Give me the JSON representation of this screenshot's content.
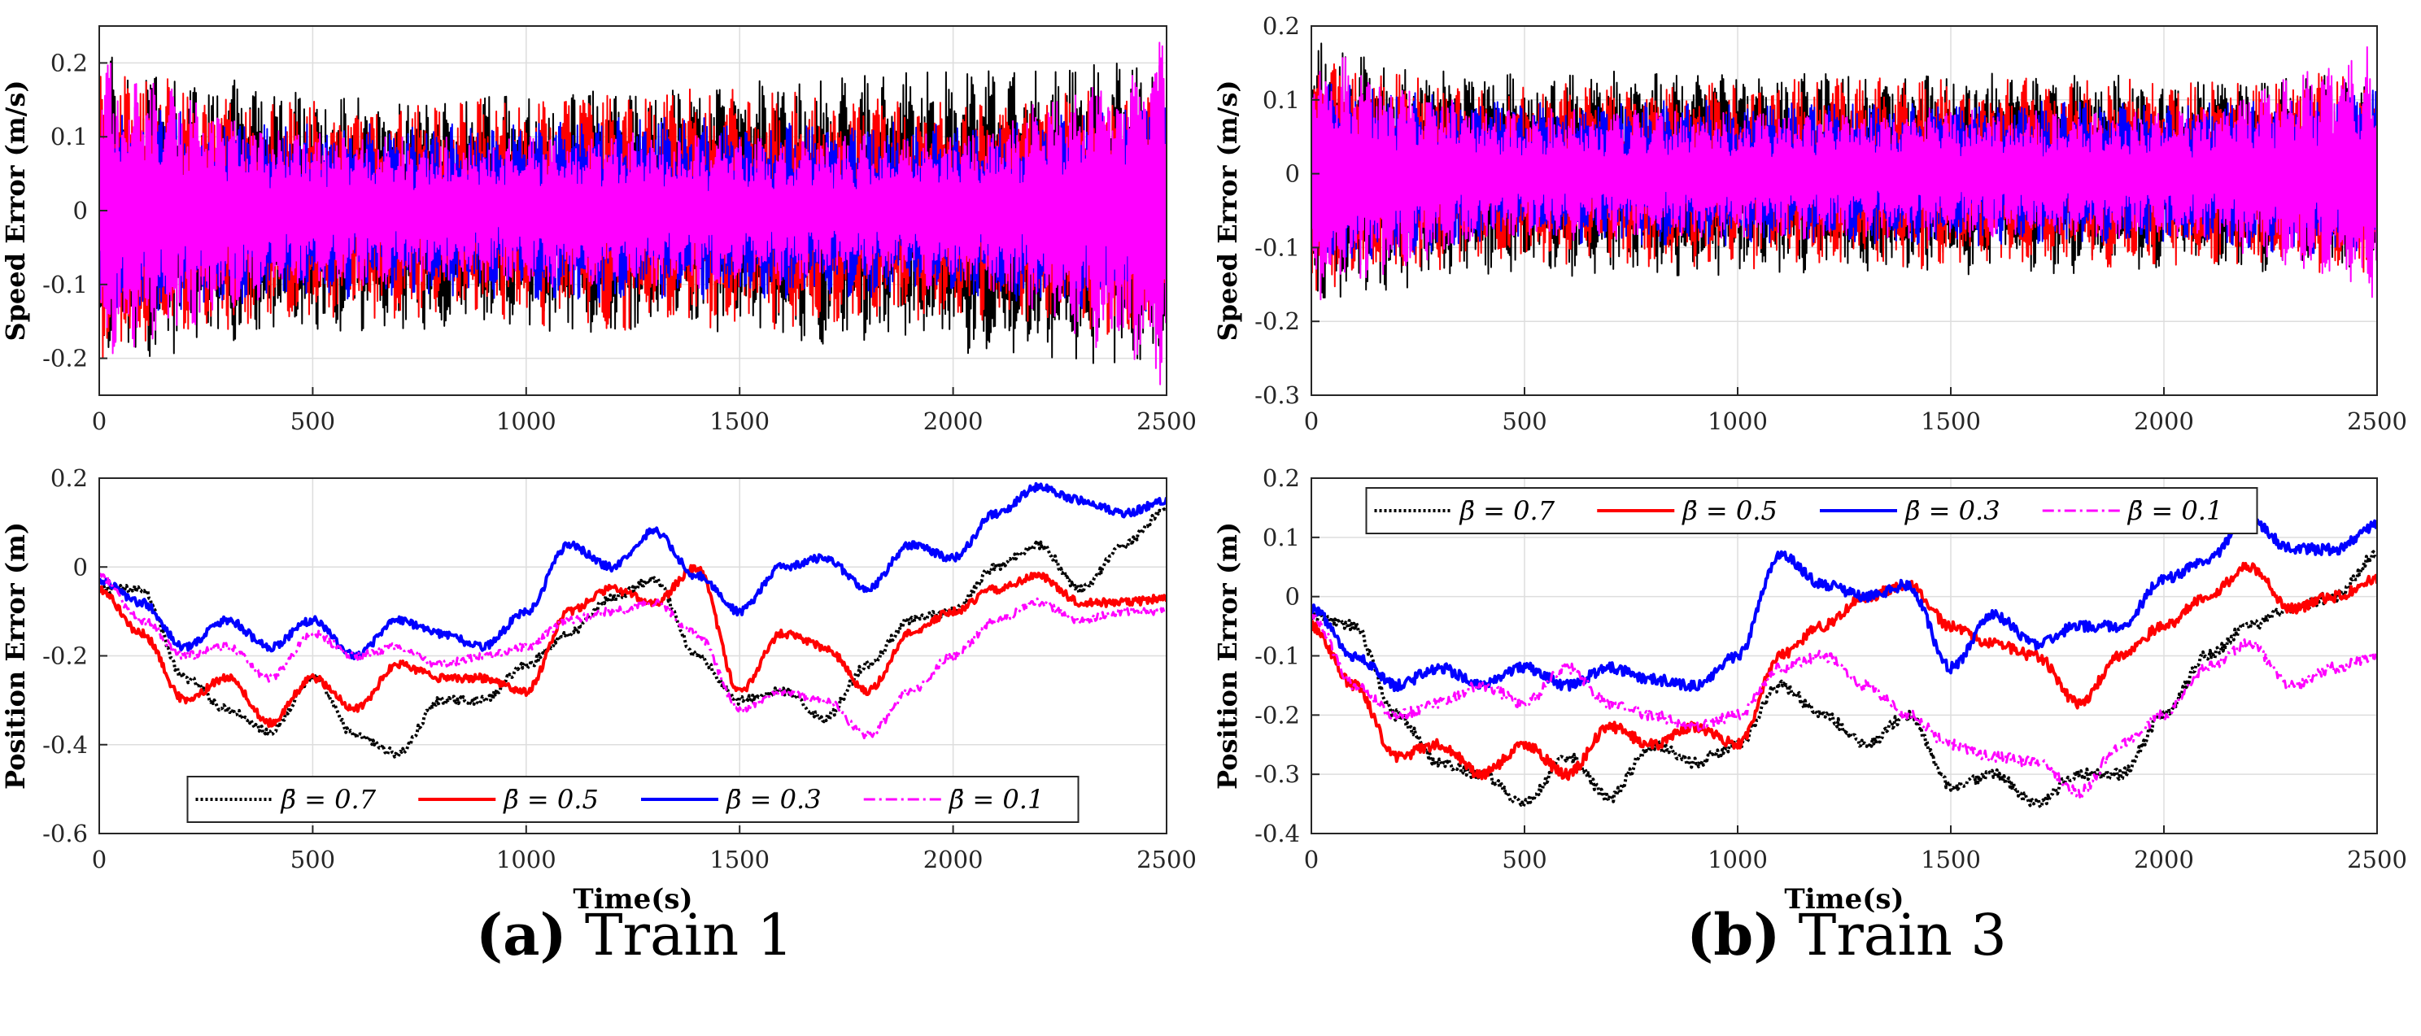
{
  "panels": [
    {
      "letter": "(a)",
      "label": "Train 1"
    },
    {
      "letter": "(b)",
      "label": "Train 3"
    }
  ],
  "legend_labels": [
    "β̄ = 0.7",
    "β̄ = 0.5",
    "β̄ = 0.3",
    "β̄ = 0.1"
  ],
  "colors": {
    "beta_0.7": "#000000",
    "beta_0.5": "#ff0000",
    "beta_0.3": "#0000ff",
    "beta_0.1": "#ff00ff"
  },
  "chart_data": [
    {
      "id": "train1-speed",
      "type": "line",
      "panel": "a",
      "ylabel": "Speed Error (m/s)",
      "xlabel": "",
      "xlim": [
        0,
        2500
      ],
      "ylim": [
        -0.25,
        0.25
      ],
      "xticks": [
        0,
        500,
        1000,
        1500,
        2000,
        2500
      ],
      "yticks": [
        -0.2,
        -0.1,
        0,
        0.1,
        0.2
      ],
      "grid": true,
      "legend": "none",
      "series": [
        {
          "name": "β̄ = 0.7",
          "style": "dotted",
          "amplitude": [
            0.22,
            0.17,
            0.16,
            0.17,
            0.18,
            0.2,
            0.22
          ]
        },
        {
          "name": "β̄ = 0.5",
          "style": "solid",
          "amplitude": [
            0.2,
            0.15,
            0.15,
            0.17,
            0.16,
            0.15,
            0.18
          ]
        },
        {
          "name": "β̄ = 0.3",
          "style": "solid",
          "amplitude": [
            0.15,
            0.12,
            0.12,
            0.13,
            0.12,
            0.12,
            0.15
          ]
        },
        {
          "name": "β̄ = 0.1",
          "style": "dashdot",
          "amplitude": [
            0.22,
            0.11,
            0.1,
            0.11,
            0.1,
            0.11,
            0.25
          ]
        }
      ]
    },
    {
      "id": "train1-position",
      "type": "line",
      "panel": "a",
      "ylabel": "Position Error (m)",
      "xlabel": "Time(s)",
      "xlim": [
        0,
        2500
      ],
      "ylim": [
        -0.6,
        0.2
      ],
      "xticks": [
        0,
        500,
        1000,
        1500,
        2000,
        2500
      ],
      "yticks": [
        -0.6,
        -0.4,
        -0.2,
        0,
        0.2
      ],
      "grid": true,
      "legend": "lower-center",
      "x": [
        0,
        100,
        200,
        300,
        400,
        500,
        600,
        700,
        800,
        900,
        1000,
        1100,
        1200,
        1300,
        1400,
        1500,
        1600,
        1700,
        1800,
        1900,
        2000,
        2100,
        2200,
        2300,
        2400,
        2500
      ],
      "series": [
        {
          "name": "β̄ = 0.7",
          "style": "dotted",
          "values": [
            -0.05,
            -0.05,
            -0.25,
            -0.32,
            -0.37,
            -0.25,
            -0.38,
            -0.42,
            -0.3,
            -0.3,
            -0.22,
            -0.15,
            -0.07,
            -0.03,
            -0.2,
            -0.3,
            -0.28,
            -0.34,
            -0.22,
            -0.12,
            -0.1,
            0.0,
            0.05,
            -0.05,
            0.05,
            0.13
          ]
        },
        {
          "name": "β̄ = 0.5",
          "style": "solid",
          "values": [
            -0.05,
            -0.15,
            -0.3,
            -0.25,
            -0.35,
            -0.25,
            -0.32,
            -0.22,
            -0.25,
            -0.25,
            -0.28,
            -0.1,
            -0.05,
            -0.08,
            0.0,
            -0.28,
            -0.15,
            -0.18,
            -0.28,
            -0.15,
            -0.1,
            -0.05,
            -0.02,
            -0.08,
            -0.08,
            -0.07
          ]
        },
        {
          "name": "β̄ = 0.3",
          "style": "solid",
          "values": [
            -0.03,
            -0.08,
            -0.18,
            -0.12,
            -0.18,
            -0.12,
            -0.2,
            -0.12,
            -0.15,
            -0.18,
            -0.1,
            0.05,
            0.0,
            0.08,
            -0.02,
            -0.1,
            0.0,
            0.02,
            -0.05,
            0.05,
            0.02,
            0.12,
            0.18,
            0.15,
            0.12,
            0.15
          ]
        },
        {
          "name": "β̄ = 0.1",
          "style": "dashdot",
          "values": [
            -0.02,
            -0.12,
            -0.2,
            -0.18,
            -0.25,
            -0.15,
            -0.2,
            -0.18,
            -0.22,
            -0.2,
            -0.18,
            -0.12,
            -0.1,
            -0.08,
            -0.15,
            -0.32,
            -0.28,
            -0.3,
            -0.38,
            -0.28,
            -0.2,
            -0.12,
            -0.08,
            -0.12,
            -0.1,
            -0.1
          ]
        }
      ]
    },
    {
      "id": "train3-speed",
      "type": "line",
      "panel": "b",
      "ylabel": "Speed Error (m/s)",
      "xlabel": "",
      "xlim": [
        0,
        2500
      ],
      "ylim": [
        -0.3,
        0.2
      ],
      "xticks": [
        0,
        500,
        1000,
        1500,
        2000,
        2500
      ],
      "yticks": [
        -0.3,
        -0.2,
        -0.1,
        0,
        0.1,
        0.2
      ],
      "grid": true,
      "legend": "none",
      "series": [
        {
          "name": "β̄ = 0.7",
          "style": "dotted",
          "amplitude": [
            0.18,
            0.14,
            0.14,
            0.14,
            0.14,
            0.13,
            0.14
          ]
        },
        {
          "name": "β̄ = 0.5",
          "style": "solid",
          "amplitude": [
            0.16,
            0.12,
            0.13,
            0.13,
            0.13,
            0.13,
            0.14
          ]
        },
        {
          "name": "β̄ = 0.3",
          "style": "solid",
          "amplitude": [
            0.13,
            0.1,
            0.1,
            0.1,
            0.1,
            0.1,
            0.12
          ]
        },
        {
          "name": "β̄ = 0.1",
          "style": "dashdot",
          "amplitude": [
            0.18,
            0.09,
            0.09,
            0.09,
            0.09,
            0.09,
            0.18
          ]
        }
      ]
    },
    {
      "id": "train3-position",
      "type": "line",
      "panel": "b",
      "ylabel": "Position Error (m)",
      "xlabel": "Time(s)",
      "xlim": [
        0,
        2500
      ],
      "ylim": [
        -0.4,
        0.2
      ],
      "xticks": [
        0,
        500,
        1000,
        1500,
        2000,
        2500
      ],
      "yticks": [
        -0.4,
        -0.3,
        -0.2,
        -0.1,
        0,
        0.1,
        0.2
      ],
      "grid": true,
      "legend": "top-center",
      "x": [
        0,
        100,
        200,
        300,
        400,
        500,
        600,
        700,
        800,
        900,
        1000,
        1100,
        1200,
        1300,
        1400,
        1500,
        1600,
        1700,
        1800,
        1900,
        2000,
        2100,
        2200,
        2300,
        2400,
        2500
      ],
      "series": [
        {
          "name": "β̄ = 0.7",
          "style": "dotted",
          "values": [
            -0.03,
            -0.05,
            -0.2,
            -0.28,
            -0.3,
            -0.35,
            -0.27,
            -0.34,
            -0.25,
            -0.28,
            -0.25,
            -0.15,
            -0.2,
            -0.25,
            -0.2,
            -0.32,
            -0.3,
            -0.35,
            -0.3,
            -0.3,
            -0.2,
            -0.1,
            -0.05,
            -0.02,
            0.0,
            0.07
          ]
        },
        {
          "name": "β̄ = 0.5",
          "style": "solid",
          "values": [
            -0.05,
            -0.15,
            -0.27,
            -0.25,
            -0.3,
            -0.25,
            -0.3,
            -0.22,
            -0.25,
            -0.22,
            -0.25,
            -0.1,
            -0.05,
            0.0,
            0.02,
            -0.05,
            -0.08,
            -0.1,
            -0.18,
            -0.1,
            -0.05,
            0.0,
            0.05,
            -0.02,
            0.0,
            0.03
          ]
        },
        {
          "name": "β̄ = 0.3",
          "style": "solid",
          "values": [
            -0.02,
            -0.1,
            -0.15,
            -0.12,
            -0.15,
            -0.12,
            -0.15,
            -0.12,
            -0.14,
            -0.15,
            -0.1,
            0.07,
            0.02,
            0.0,
            0.02,
            -0.12,
            -0.03,
            -0.08,
            -0.05,
            -0.05,
            0.03,
            0.06,
            0.13,
            0.08,
            0.08,
            0.12
          ]
        },
        {
          "name": "β̄ = 0.1",
          "style": "dashdot",
          "values": [
            -0.03,
            -0.15,
            -0.2,
            -0.18,
            -0.15,
            -0.18,
            -0.12,
            -0.18,
            -0.2,
            -0.22,
            -0.2,
            -0.12,
            -0.1,
            -0.15,
            -0.2,
            -0.25,
            -0.27,
            -0.28,
            -0.33,
            -0.25,
            -0.2,
            -0.12,
            -0.08,
            -0.15,
            -0.12,
            -0.1
          ]
        }
      ]
    }
  ]
}
